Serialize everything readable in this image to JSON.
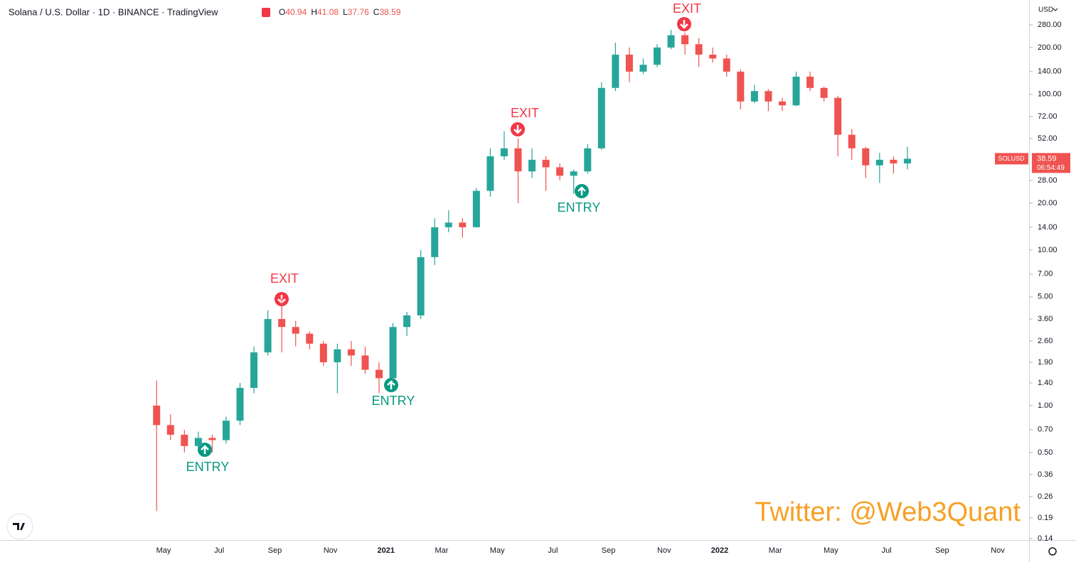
{
  "chart_data": {
    "type": "candlestick",
    "title": "Solana / U.S. Dollar · 1D · BINANCE · TradingView",
    "quote": [
      {
        "name": "O",
        "value": 40.94
      },
      {
        "name": "H",
        "value": 41.08
      },
      {
        "name": "L",
        "value": 37.76
      },
      {
        "name": "C",
        "value": 38.59
      }
    ],
    "currency": "USD",
    "symbol": "SOLUSD",
    "last_price": 38.59,
    "countdown": "06:54:49",
    "watermark": "Twitter: @Web3Quant",
    "up_color": "#26a69a",
    "down_color": "#ef5350",
    "grid": false,
    "log_scale": true,
    "categories": [
      null,
      "May",
      null,
      null,
      null,
      "Jul",
      null,
      null,
      null,
      "Sep",
      null,
      null,
      null,
      "Nov",
      null,
      null,
      null,
      "2021",
      null,
      null,
      null,
      "Mar",
      null,
      null,
      null,
      "May",
      null,
      null,
      null,
      "Jul",
      null,
      null,
      null,
      "Sep",
      null,
      null,
      null,
      "Nov",
      null,
      null,
      null,
      "2022",
      null,
      null,
      null,
      "Mar",
      null,
      null,
      null,
      "May",
      null,
      null,
      null,
      "Jul",
      null,
      null,
      null,
      "Sep",
      null,
      null,
      null,
      "Nov",
      null
    ],
    "open": [
      1.0,
      0.75,
      0.65,
      0.55,
      0.62,
      0.6,
      0.8,
      1.3,
      2.2,
      3.6,
      3.2,
      2.9,
      2.5,
      1.9,
      2.3,
      2.1,
      1.7,
      1.5,
      3.2,
      3.8,
      9,
      14,
      15,
      14,
      24,
      40,
      45,
      32,
      38,
      34,
      30,
      32,
      45,
      110,
      180,
      140,
      155,
      200,
      240,
      210,
      180,
      170,
      140,
      90,
      105,
      90,
      85,
      130,
      110,
      95,
      55,
      45,
      35,
      38,
      36,
      null,
      null,
      null,
      null,
      null,
      null,
      null,
      null
    ],
    "high": [
      1.45,
      0.88,
      0.7,
      0.68,
      0.65,
      0.85,
      1.4,
      2.4,
      4.1,
      4.9,
      3.5,
      3.0,
      2.6,
      2.5,
      2.6,
      2.4,
      1.9,
      3.4,
      4.0,
      10,
      16,
      18,
      16,
      25,
      45,
      58,
      52,
      45,
      40,
      36,
      33,
      48,
      120,
      215,
      200,
      170,
      210,
      260,
      250,
      230,
      200,
      180,
      145,
      115,
      108,
      95,
      140,
      140,
      112,
      98,
      60,
      46,
      42,
      40,
      46,
      null,
      null,
      null,
      null,
      null,
      null,
      null,
      null
    ],
    "low": [
      0.21,
      0.6,
      0.5,
      0.52,
      0.5,
      0.57,
      0.75,
      1.2,
      2.1,
      2.2,
      2.4,
      2.3,
      1.8,
      1.2,
      1.8,
      1.6,
      1.2,
      1.4,
      2.8,
      3.6,
      8,
      13,
      12,
      14,
      22,
      38,
      20,
      29,
      24,
      28,
      23,
      31,
      44,
      105,
      120,
      135,
      150,
      195,
      180,
      150,
      160,
      130,
      80,
      88,
      78,
      78,
      84,
      105,
      90,
      40,
      38,
      29,
      27,
      31,
      33,
      null,
      null,
      null,
      null,
      null,
      null,
      null,
      null
    ],
    "close": [
      0.75,
      0.65,
      0.55,
      0.62,
      0.6,
      0.8,
      1.3,
      2.2,
      3.6,
      3.2,
      2.9,
      2.5,
      1.9,
      2.3,
      2.1,
      1.7,
      1.5,
      3.2,
      3.8,
      9,
      14,
      15,
      14,
      24,
      40,
      45,
      32,
      38,
      34,
      30,
      32,
      45,
      110,
      180,
      140,
      155,
      200,
      240,
      210,
      180,
      170,
      140,
      90,
      105,
      90,
      85,
      130,
      110,
      95,
      55,
      45,
      35,
      38,
      36,
      38.59,
      null,
      null,
      null,
      null,
      null,
      null,
      null,
      null
    ],
    "ylim": [
      0.137,
      404
    ],
    "yticks": [
      {
        "value": 0.14,
        "label": "0.14"
      },
      {
        "value": 0.19,
        "label": "0.19"
      },
      {
        "value": 0.26,
        "label": "0.26"
      },
      {
        "value": 0.36,
        "label": "0.36"
      },
      {
        "value": 0.5,
        "label": "0.50"
      },
      {
        "value": 0.7,
        "label": "0.70"
      },
      {
        "value": 1,
        "label": "1.00"
      },
      {
        "value": 1.4,
        "label": "1.40"
      },
      {
        "value": 1.9,
        "label": "1.90"
      },
      {
        "value": 2.6,
        "label": "2.60"
      },
      {
        "value": 3.6,
        "label": "3.60"
      },
      {
        "value": 5,
        "label": "5.00"
      },
      {
        "value": 7,
        "label": "7.00"
      },
      {
        "value": 10,
        "label": "10.00"
      },
      {
        "value": 14,
        "label": "14.00"
      },
      {
        "value": 20,
        "label": "20.00"
      },
      {
        "value": 28,
        "label": "28.00"
      },
      {
        "value": 52,
        "label": "52.00"
      },
      {
        "value": 72,
        "label": "72.00"
      },
      {
        "value": 100,
        "label": "100.00"
      },
      {
        "value": 140,
        "label": "140.00"
      },
      {
        "value": 200,
        "label": "200.00"
      },
      {
        "value": 280,
        "label": "280.00"
      }
    ],
    "annotations": [
      "ENTRY",
      "EXIT",
      "ENTRY",
      "EXIT",
      "ENTRY",
      "EXIT"
    ]
  }
}
